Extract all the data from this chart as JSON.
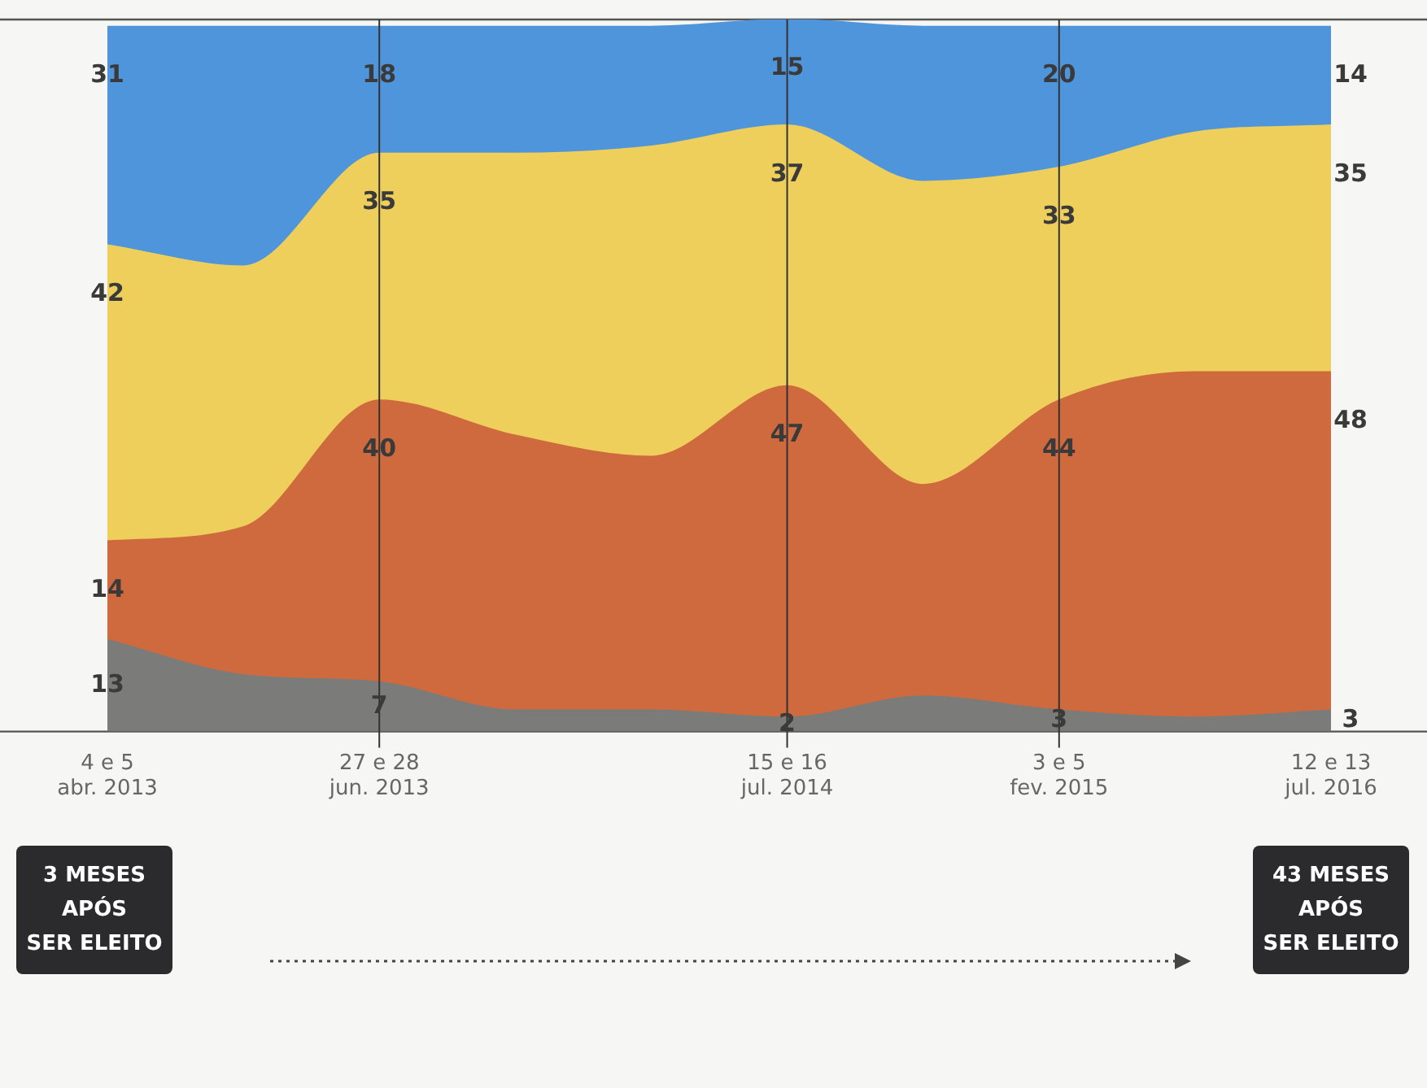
{
  "chart_data": {
    "type": "area",
    "stacked": true,
    "categories": [
      "4 e 5\nabr. 2013",
      null,
      "27 e 28\njun. 2013",
      null,
      null,
      "15 e 16\njul. 2014",
      null,
      "3 e 5\nfev. 2015",
      null,
      "12 e 13\njul. 2016"
    ],
    "series": [
      {
        "color": "#7b7b79",
        "values": [
          13,
          8,
          7,
          3,
          3,
          2,
          5,
          3,
          2,
          3
        ],
        "value_labels": [
          "13",
          null,
          "7",
          null,
          null,
          "2",
          null,
          "3",
          null,
          "3"
        ]
      },
      {
        "color": "#cf6a3f",
        "values": [
          14,
          21,
          40,
          39,
          36,
          47,
          30,
          44,
          49,
          48
        ],
        "value_labels": [
          "14",
          null,
          "40",
          null,
          null,
          "47",
          null,
          "44",
          null,
          "48"
        ]
      },
      {
        "color": "#efcf5c",
        "values": [
          42,
          37,
          35,
          40,
          44,
          37,
          43,
          33,
          34,
          35
        ],
        "value_labels": [
          "42",
          null,
          "35",
          null,
          null,
          "37",
          null,
          "33",
          null,
          "35"
        ]
      },
      {
        "color": "#4f95dc",
        "values": [
          31,
          34,
          18,
          18,
          17,
          15,
          22,
          20,
          15,
          14
        ],
        "value_labels": [
          "31",
          null,
          "18",
          null,
          null,
          "15",
          null,
          "20",
          null,
          "14"
        ]
      }
    ],
    "ylim": [
      0,
      101
    ],
    "tick_labels": "x",
    "grid": false,
    "legend": false,
    "ref_lines": [
      {
        "axis": "x",
        "value": "27 e 28\njun. 2013",
        "color": "#333333"
      },
      {
        "axis": "x",
        "value": "15 e 16\njul. 2014",
        "color": "#333333"
      },
      {
        "axis": "x",
        "value": "3 e 5\nfev. 2015",
        "color": "#333333"
      }
    ],
    "annotations": [
      "3 MESES\nAPÓS\nSER ELEITO",
      "43 MESES\nAPÓS\nSER ELEITO"
    ]
  }
}
